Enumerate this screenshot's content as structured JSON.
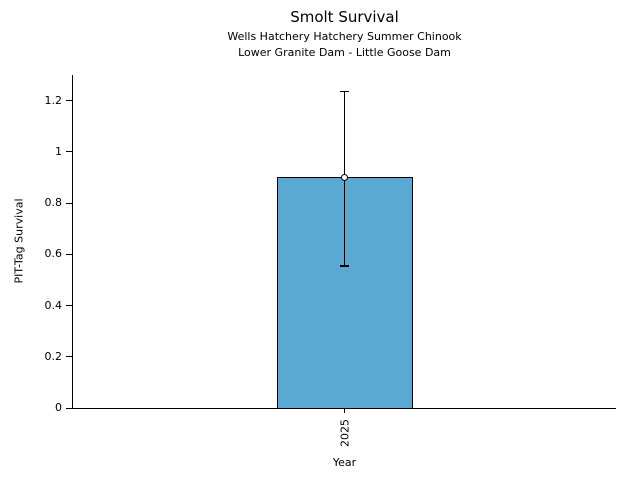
{
  "chart_data": {
    "type": "bar",
    "title": "Smolt Survival",
    "subtitle": [
      "Wells Hatchery Hatchery Summer Chinook",
      "Lower Granite Dam - Little Goose Dam"
    ],
    "xlabel": "Year",
    "ylabel": "PIT-Tag Survival",
    "categories": [
      "2025"
    ],
    "values": [
      0.9
    ],
    "error_low": [
      0.555
    ],
    "error_high": [
      1.235
    ],
    "ylim": [
      0,
      1.3
    ],
    "yticks": [
      0,
      0.2,
      0.4,
      0.6,
      0.8,
      1,
      1.2
    ],
    "ytick_labels": [
      "0",
      "0.2",
      "0.4",
      "0.6",
      "0.8",
      "1",
      "1.2"
    ],
    "bar_color": "#5AA9D2",
    "edge_color": "#000000",
    "marker": "open-circle",
    "grid": false,
    "legend_position": "none",
    "x_tick_rotation_deg": 90
  }
}
